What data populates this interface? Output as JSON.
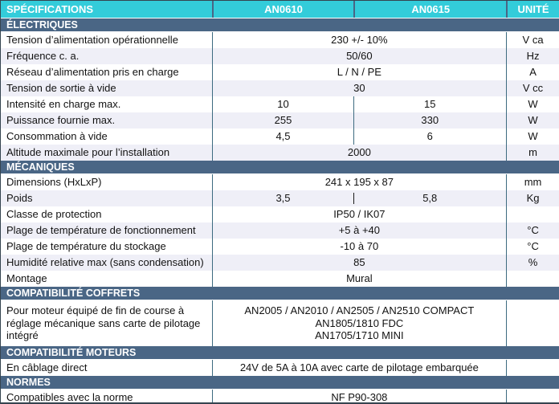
{
  "table": {
    "colors": {
      "header_bg": "#33CCDA",
      "section_bg": "#4A6685",
      "row_tint": "#EFEFF7",
      "divider": "#3D6B80"
    },
    "columns": [
      "SPÉCIFICATIONS",
      "AN0610",
      "AN0615",
      "UNITÉ"
    ],
    "sections": [
      {
        "title": "ÉLECTRIQUES",
        "rows": [
          {
            "label": "Tension d’alimentation opérationnelle",
            "value": "230 +/- 10%",
            "unit": "V ca"
          },
          {
            "label": "Fréquence c. a.",
            "value": "50/60",
            "unit": "Hz"
          },
          {
            "label": "Réseau d’alimentation pris en charge",
            "value": "L / N / PE",
            "unit": "A"
          },
          {
            "label": "Tension de sortie à vide",
            "value": "30",
            "unit": "V cc"
          },
          {
            "label": "Intensité en charge max.",
            "value1": "10",
            "value2": "15",
            "unit": "W"
          },
          {
            "label": "Puissance fournie max.",
            "value1": "255",
            "value2": "330",
            "unit": "W"
          },
          {
            "label": "Consommation à vide",
            "value1": "4,5",
            "value2": "6",
            "unit": "W"
          },
          {
            "label": "Altitude maximale pour l’installation",
            "value": "2000",
            "unit": "m"
          }
        ]
      },
      {
        "title": "MÉCANIQUES",
        "rows": [
          {
            "label": "Dimensions (HxLxP)",
            "value": "241 x 195 x 87",
            "unit": "mm"
          },
          {
            "label": "Poids",
            "value1": "3,5",
            "value2": "5,8",
            "unit": "Kg",
            "divider": "pipe"
          },
          {
            "label": "Classe de protection",
            "value": "IP50 / IK07",
            "unit": ""
          },
          {
            "label": "Plage de température de fonctionnement",
            "value": "+5 à +40",
            "unit": "°C"
          },
          {
            "label": "Plage de température du stockage",
            "value": "-10 à 70",
            "unit": "°C"
          },
          {
            "label": "Humidité relative max (sans condensation)",
            "value": "85",
            "unit": "%"
          },
          {
            "label": "Montage",
            "value": "Mural",
            "unit": ""
          }
        ]
      },
      {
        "title": "COMPATIBILITÉ COFFRETS",
        "rows": [
          {
            "label": "Pour moteur équipé de fin de course à réglage mécanique sans carte de pilotage intégré",
            "value_lines": [
              "AN2005 / AN2010 / AN2505 / AN2510 COMPACT",
              "AN1805/1810 FDC",
              "AN1705/1710 MINI"
            ],
            "unit": ""
          }
        ]
      },
      {
        "title": "COMPATIBILITÉ MOTEURS",
        "rows": [
          {
            "label": "En câblage direct",
            "value": "24V de 5A à 10A avec carte de pilotage embarquée",
            "unit": ""
          }
        ]
      },
      {
        "title": "NORMES",
        "rows": [
          {
            "label": "Compatibles avec la norme",
            "value": "NF P90-308",
            "unit": ""
          }
        ]
      }
    ]
  }
}
